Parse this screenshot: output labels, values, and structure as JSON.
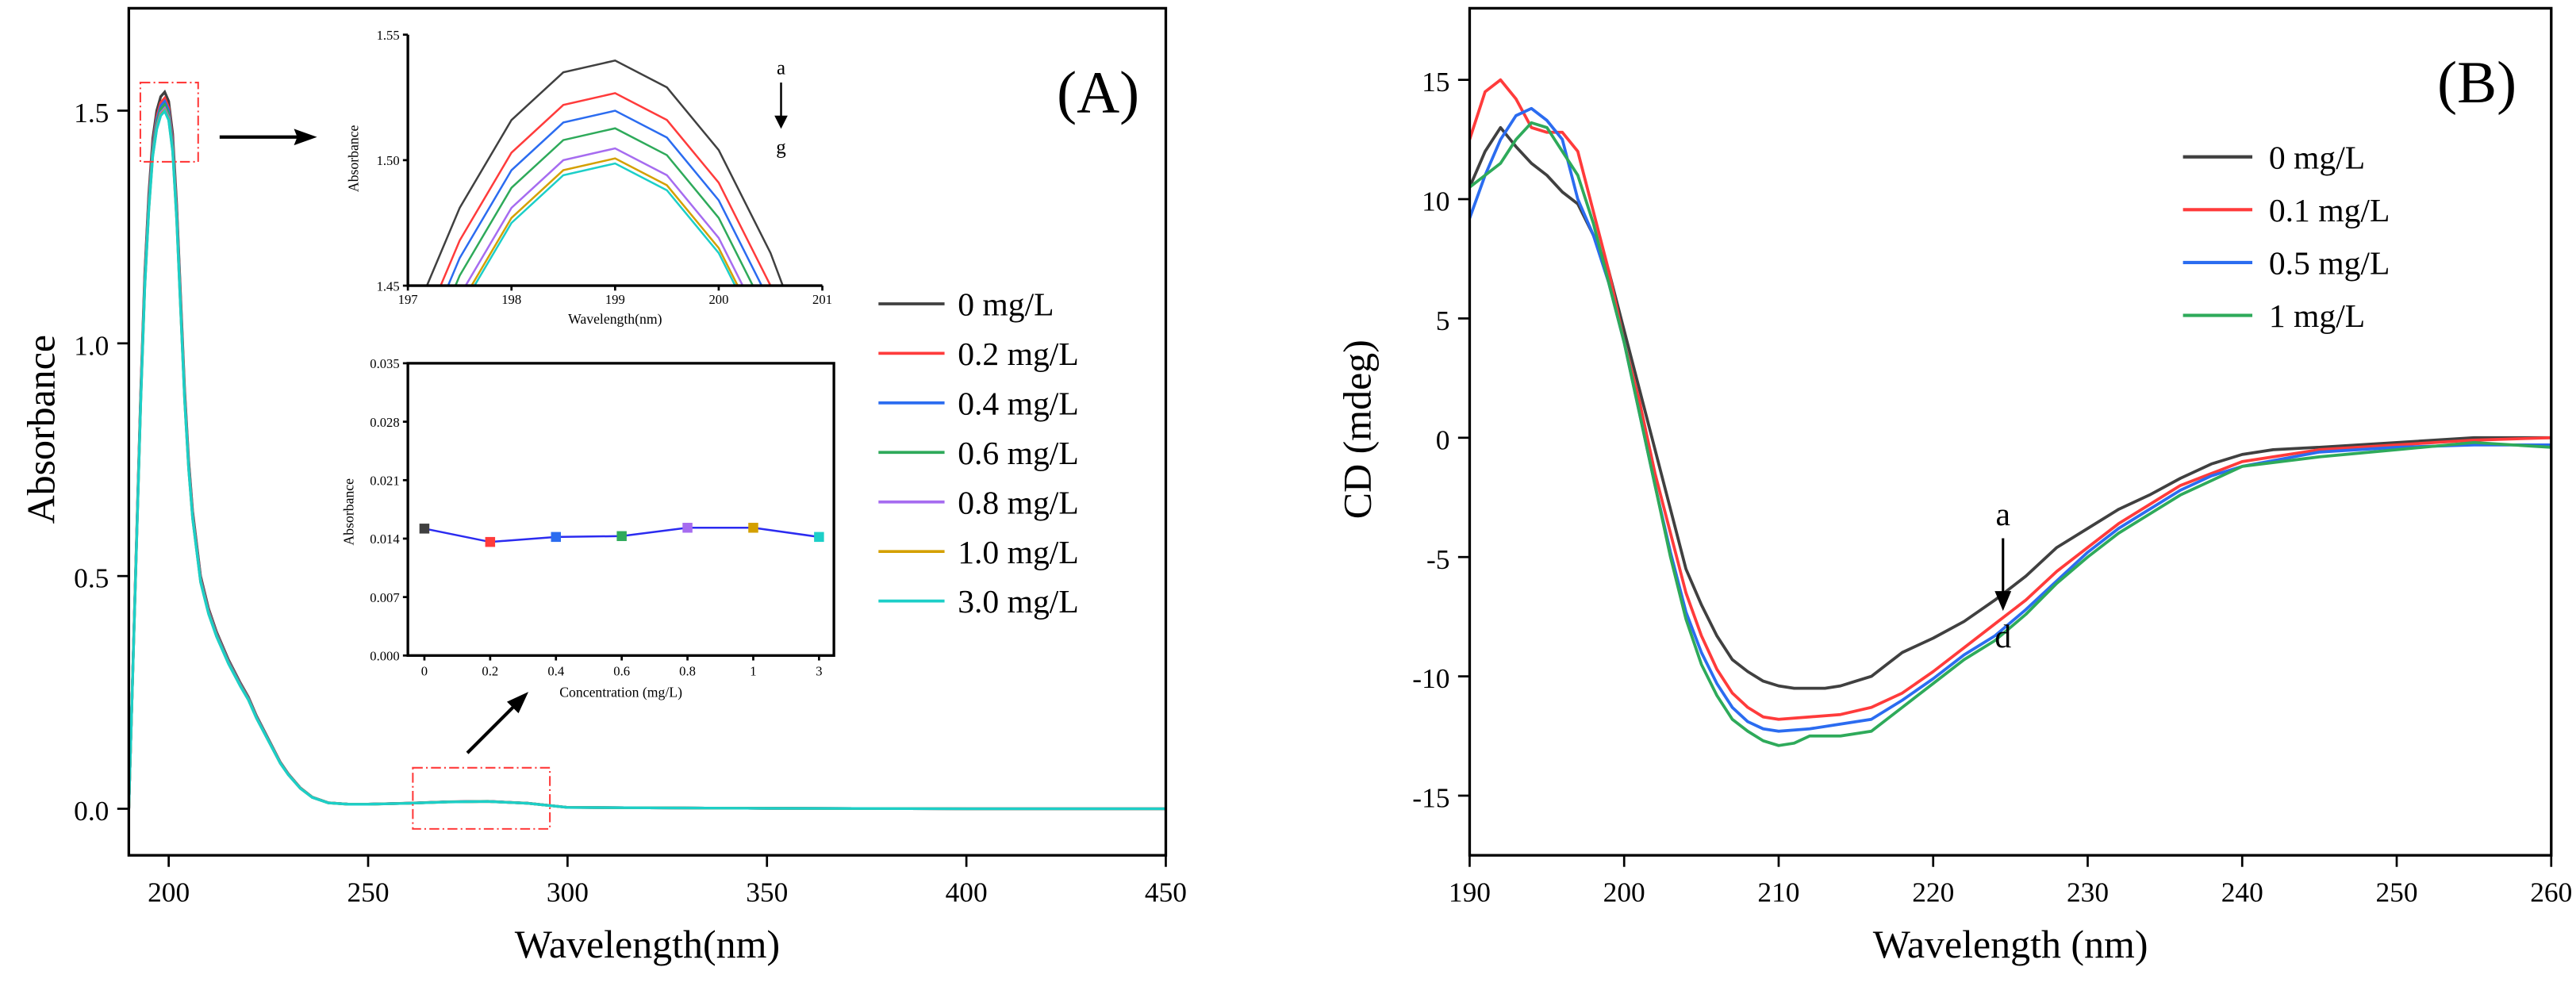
{
  "chart_data": [
    {
      "id": "A",
      "type": "line",
      "panel_label": "(A)",
      "xlabel": "Wavelength(nm)",
      "ylabel": "Absorbance",
      "xlim": [
        190,
        450
      ],
      "ylim": [
        -0.1,
        1.72
      ],
      "xticks": [
        200,
        250,
        300,
        350,
        400,
        450
      ],
      "yticks": [
        0.0,
        0.5,
        1.0,
        1.5
      ],
      "ytick_labels": [
        "0.0",
        "0.5",
        "1.0",
        "1.5"
      ],
      "legend_position": "right-middle",
      "profile_x": [
        190,
        191,
        192,
        193,
        194,
        195,
        196,
        197,
        198,
        199,
        200,
        201,
        202,
        203,
        204,
        205,
        206,
        208,
        210,
        212,
        215,
        218,
        220,
        222,
        225,
        228,
        230,
        233,
        236,
        240,
        245,
        250,
        260,
        270,
        280,
        290,
        300,
        320,
        350,
        400,
        450
      ],
      "profile_y": [
        0,
        0.3,
        0.6,
        0.9,
        1.15,
        1.32,
        1.44,
        1.5,
        1.53,
        1.54,
        1.52,
        1.45,
        1.3,
        1.1,
        0.9,
        0.75,
        0.64,
        0.5,
        0.43,
        0.38,
        0.32,
        0.27,
        0.24,
        0.2,
        0.15,
        0.1,
        0.075,
        0.045,
        0.025,
        0.013,
        0.01,
        0.01,
        0.012,
        0.015,
        0.016,
        0.012,
        0.003,
        0.002,
        0.001,
        0,
        0
      ],
      "series": [
        {
          "name": "0 mg/L",
          "color": "#404040",
          "peak": 1.54
        },
        {
          "name": "0.2 mg/L",
          "color": "#ff3b3b",
          "peak": 1.527
        },
        {
          "name": "0.4 mg/L",
          "color": "#2b6cf0",
          "peak": 1.52
        },
        {
          "name": "0.6 mg/L",
          "color": "#2eaa5a",
          "peak": 1.513
        },
        {
          "name": "0.8 mg/L",
          "color": "#a66cf0",
          "peak": 1.505
        },
        {
          "name": "1.0 mg/L",
          "color": "#d4a000",
          "peak": 1.501
        },
        {
          "name": "3.0 mg/L",
          "color": "#1ccfc8",
          "peak": 1.499
        }
      ],
      "annotation": {
        "from": "a",
        "to": "g"
      },
      "inset_peak": {
        "type": "line",
        "xlabel": "Wavelength(nm)",
        "ylabel": "Absorbance",
        "xlim": [
          197,
          201
        ],
        "ylim": [
          1.45,
          1.55
        ],
        "xticks": [
          "197",
          "198",
          "199",
          "200",
          "201"
        ],
        "yticks": [
          "1.45",
          "1.50",
          "1.55"
        ],
        "x": [
          197,
          197.5,
          198,
          198.5,
          199,
          199.5,
          200,
          200.5,
          201
        ],
        "offsets": [
          0.108,
          0.059,
          0.024,
          0.005,
          0.0003,
          0.011,
          0.036,
          0.077,
          0.132
        ]
      },
      "inset_conc": {
        "type": "line",
        "xlabel": "Concentration (mg/L)",
        "ylabel": "Absorbance",
        "ylim": [
          0,
          0.035
        ],
        "categories": [
          "0",
          "0.2",
          "0.4",
          "0.6",
          "0.8",
          "1",
          "3"
        ],
        "values": [
          0.0152,
          0.0136,
          0.0142,
          0.0143,
          0.0153,
          0.0153,
          0.0142
        ],
        "point_colors": [
          "#404040",
          "#ff3b3b",
          "#2b6cf0",
          "#2eaa5a",
          "#a66cf0",
          "#d4a000",
          "#1ccfc8"
        ],
        "line_color": "#2b2bf0",
        "yticks": [
          "0.000",
          "0.007",
          "0.014",
          "0.021",
          "0.028",
          "0.035"
        ]
      }
    },
    {
      "id": "B",
      "type": "line",
      "panel_label": "(B)",
      "xlabel": "Wavelength (nm)",
      "ylabel": "CD (mdeg)",
      "xlim": [
        190,
        260
      ],
      "ylim": [
        -17.5,
        18
      ],
      "xticks": [
        190,
        200,
        210,
        220,
        230,
        240,
        250,
        260
      ],
      "yticks": [
        -15,
        -10,
        -5,
        0,
        5,
        10,
        15
      ],
      "legend_position": "top-right",
      "annotation": {
        "from": "a",
        "to": "d"
      },
      "series": [
        {
          "name": "0 mg/L",
          "color": "#404040",
          "x": [
            190,
            191,
            192,
            193,
            194,
            195,
            196,
            197,
            198,
            199,
            200,
            201,
            202,
            203,
            204,
            205,
            206,
            207,
            208,
            209,
            210,
            211,
            212,
            213,
            214,
            215,
            216,
            217,
            218,
            219,
            220,
            222,
            224,
            226,
            228,
            230,
            232,
            234,
            236,
            238,
            240,
            242,
            245,
            250,
            255,
            260
          ],
          "y": [
            10.5,
            12,
            13,
            12.2,
            11.5,
            11,
            10.3,
            9.8,
            8.5,
            7,
            4.5,
            2,
            -0.5,
            -3,
            -5.5,
            -7,
            -8.3,
            -9.3,
            -9.8,
            -10.2,
            -10.4,
            -10.5,
            -10.5,
            -10.5,
            -10.4,
            -10.2,
            -10,
            -9.5,
            -9,
            -8.7,
            -8.4,
            -7.7,
            -6.8,
            -5.8,
            -4.6,
            -3.8,
            -3,
            -2.4,
            -1.7,
            -1.1,
            -0.7,
            -0.5,
            -0.4,
            -0.2,
            0,
            0
          ]
        },
        {
          "name": "0.1 mg/L",
          "color": "#ff3b3b",
          "x": [
            190,
            191,
            192,
            193,
            194,
            195,
            196,
            197,
            198,
            199,
            200,
            201,
            202,
            203,
            204,
            205,
            206,
            207,
            208,
            209,
            210,
            212,
            214,
            216,
            218,
            220,
            222,
            224,
            226,
            228,
            230,
            232,
            234,
            236,
            238,
            240,
            245,
            250,
            255,
            260
          ],
          "y": [
            12.5,
            14.5,
            15,
            14.2,
            13,
            12.8,
            12.8,
            12,
            9.5,
            7,
            4,
            1.5,
            -1.5,
            -4,
            -6.5,
            -8.3,
            -9.7,
            -10.7,
            -11.3,
            -11.7,
            -11.8,
            -11.7,
            -11.6,
            -11.3,
            -10.7,
            -9.8,
            -8.8,
            -7.8,
            -6.8,
            -5.6,
            -4.6,
            -3.6,
            -2.8,
            -2,
            -1.5,
            -1,
            -0.5,
            -0.3,
            -0.1,
            0
          ]
        },
        {
          "name": "0.5 mg/L",
          "color": "#2b6cf0",
          "x": [
            190,
            191,
            192,
            193,
            194,
            195,
            196,
            197,
            198,
            199,
            200,
            201,
            202,
            203,
            204,
            205,
            206,
            207,
            208,
            209,
            210,
            212,
            214,
            216,
            218,
            220,
            222,
            224,
            226,
            228,
            230,
            232,
            234,
            236,
            238,
            240,
            245,
            250,
            255,
            260
          ],
          "y": [
            9.2,
            11,
            12.5,
            13.5,
            13.8,
            13.3,
            12.5,
            10,
            8.5,
            6.5,
            4,
            1,
            -2,
            -4.8,
            -7.3,
            -9,
            -10.3,
            -11.3,
            -11.9,
            -12.2,
            -12.3,
            -12.2,
            -12,
            -11.8,
            -11,
            -10.1,
            -9.1,
            -8.3,
            -7.2,
            -6,
            -4.8,
            -3.8,
            -3,
            -2.2,
            -1.6,
            -1.2,
            -0.6,
            -0.4,
            -0.3,
            -0.3
          ]
        },
        {
          "name": "1 mg/L",
          "color": "#2eaa5a",
          "x": [
            190,
            191,
            192,
            193,
            194,
            195,
            196,
            197,
            198,
            199,
            200,
            201,
            202,
            203,
            204,
            205,
            206,
            207,
            208,
            209,
            210,
            211,
            212,
            214,
            216,
            218,
            220,
            222,
            224,
            226,
            228,
            230,
            232,
            234,
            236,
            238,
            240,
            245,
            250,
            255,
            260
          ],
          "y": [
            10.5,
            11,
            11.5,
            12.5,
            13.2,
            13,
            12,
            11,
            9,
            6.5,
            4,
            1,
            -2,
            -5,
            -7.6,
            -9.5,
            -10.8,
            -11.8,
            -12.3,
            -12.7,
            -12.9,
            -12.8,
            -12.5,
            -12.5,
            -12.3,
            -11.3,
            -10.3,
            -9.3,
            -8.5,
            -7.4,
            -6.1,
            -5,
            -4,
            -3.2,
            -2.4,
            -1.8,
            -1.2,
            -0.8,
            -0.5,
            -0.2,
            -0.4
          ]
        }
      ]
    }
  ]
}
